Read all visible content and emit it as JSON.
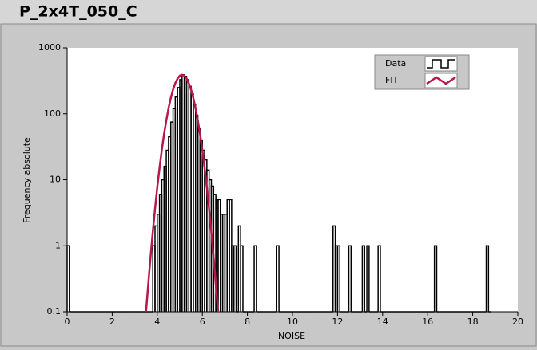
{
  "chart_data": {
    "type": "histogram",
    "title": "P_2x4T_050_C",
    "xlabel": "NOISE",
    "ylabel": "Frequency absolute",
    "xlim": [
      0,
      20
    ],
    "xticks": [
      0,
      2,
      4,
      6,
      8,
      10,
      12,
      14,
      16,
      18,
      20
    ],
    "ylim": [
      0.1,
      1000
    ],
    "yticks": [
      0.1,
      1,
      10,
      100,
      1000
    ],
    "ylog": true,
    "grid": false,
    "legend": "upper right",
    "series": [
      {
        "name": "Data",
        "color": "#000000",
        "bins": [
          0,
          0.1,
          0.2,
          0.3,
          0.4,
          0.5,
          0.6,
          0.7,
          0.8,
          0.9,
          1,
          1.1,
          1.2,
          1.3,
          1.4,
          1.5,
          1.6,
          1.7,
          1.8,
          1.9,
          2,
          2.1,
          2.2,
          2.3,
          2.4,
          2.5,
          2.6,
          2.7,
          2.8,
          2.9,
          3,
          3.1,
          3.2,
          3.3,
          3.4,
          3.5,
          3.6,
          3.7,
          3.8,
          3.9,
          4,
          4.1,
          4.2,
          4.3,
          4.4,
          4.5,
          4.6,
          4.7,
          4.8,
          4.9,
          5,
          5.1,
          5.2,
          5.3,
          5.4,
          5.5,
          5.6,
          5.7,
          5.8,
          5.9,
          6,
          6.1,
          6.2,
          6.3,
          6.4,
          6.5,
          6.6,
          6.7,
          6.8,
          6.9,
          7,
          7.1,
          7.2,
          7.3,
          7.4,
          7.5,
          7.6,
          7.7,
          7.8,
          7.9,
          8,
          8.1,
          8.2,
          8.3,
          8.4,
          8.5,
          8.6,
          8.7,
          8.8,
          8.9,
          9,
          9.1,
          9.2,
          9.3,
          9.4,
          9.5,
          9.6,
          9.7,
          9.8,
          9.9,
          10,
          10.1,
          10.2,
          10.3,
          10.4,
          10.5,
          10.6,
          10.7,
          10.8,
          10.9,
          11,
          11.1,
          11.2,
          11.3,
          11.4,
          11.5,
          11.6,
          11.7,
          11.8,
          11.9,
          12,
          12.1,
          12.2,
          12.3,
          12.4,
          12.5,
          12.6,
          12.7,
          12.8,
          12.9,
          13,
          13.1,
          13.2,
          13.3,
          13.4,
          13.5,
          13.6,
          13.7,
          13.8,
          13.9,
          14,
          14.1,
          14.2,
          14.3,
          14.4,
          14.5,
          14.6,
          14.7,
          14.8,
          14.9,
          15,
          15.1,
          15.2,
          15.3,
          15.4,
          15.5,
          15.6,
          15.7,
          15.8,
          15.9,
          16,
          16.1,
          16.2,
          16.3,
          16.4,
          16.5,
          16.6,
          16.7,
          16.8,
          16.9,
          17,
          17.1,
          17.2,
          17.3,
          17.4,
          17.5,
          17.6,
          17.7,
          17.8,
          17.9,
          18,
          18.1,
          18.2,
          18.3,
          18.4,
          18.5,
          18.6,
          18.7,
          18.8
        ],
        "values": [
          1,
          0,
          0,
          0,
          0,
          0,
          0,
          0,
          0,
          0,
          0,
          0,
          0,
          0,
          0,
          0,
          0,
          0,
          0,
          0,
          0,
          0,
          0,
          0,
          0,
          0,
          0,
          0,
          0,
          0,
          0,
          0,
          0,
          0,
          0,
          0,
          0,
          0,
          1,
          2,
          3,
          6,
          10,
          16,
          28,
          45,
          75,
          120,
          180,
          250,
          330,
          390,
          370,
          330,
          260,
          200,
          140,
          95,
          60,
          40,
          28,
          20,
          14,
          10,
          8,
          6,
          5,
          5,
          3,
          3,
          3,
          5,
          5,
          1,
          1,
          0,
          2,
          1,
          0,
          0,
          0,
          0,
          0,
          1,
          0,
          0,
          0,
          0,
          0,
          0,
          0,
          0,
          0,
          1,
          0,
          0,
          0,
          0,
          0,
          0,
          0,
          0,
          0,
          0,
          0,
          0,
          0,
          0,
          0,
          0,
          0,
          0,
          0,
          0,
          0,
          0,
          0,
          0,
          2,
          1,
          1,
          0,
          0,
          0,
          0,
          1,
          0,
          0,
          0,
          0,
          0,
          1,
          0,
          1,
          0,
          0,
          0,
          0,
          1,
          0,
          0,
          0,
          0,
          0,
          0,
          0,
          0,
          0,
          0,
          0,
          0,
          0,
          0,
          0,
          0,
          0,
          0,
          0,
          0,
          0,
          0,
          0,
          0,
          1,
          0,
          0,
          0,
          0,
          0,
          0,
          0,
          0,
          0,
          0,
          0,
          0,
          0,
          0,
          0,
          0,
          0,
          0,
          0,
          0,
          0,
          0,
          1,
          0
        ]
      },
      {
        "name": "FIT",
        "color": "#b5174e",
        "type": "line",
        "x": [
          3.5,
          3.6,
          3.7,
          3.8,
          3.9,
          4,
          4.1,
          4.2,
          4.3,
          4.4,
          4.5,
          4.6,
          4.7,
          4.8,
          4.9,
          5,
          5.1,
          5.2,
          5.3,
          5.4,
          5.5,
          5.6,
          5.7,
          5.8,
          5.9,
          6,
          6.1,
          6.2,
          6.3,
          6.4,
          6.5,
          6.6,
          6.7
        ],
        "values": [
          0.096,
          0.26,
          0.67,
          1.6,
          3.6,
          7.7,
          15,
          28,
          49,
          79,
          121,
          173,
          232,
          291,
          342,
          378,
          390,
          378,
          342,
          291,
          232,
          173,
          121,
          79,
          49,
          28,
          15,
          7.7,
          3.6,
          1.6,
          0.67,
          0.26,
          0.096
        ]
      }
    ]
  }
}
